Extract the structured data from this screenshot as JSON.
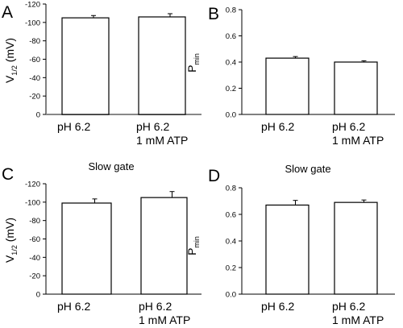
{
  "chart_data": [
    {
      "panel": "A",
      "type": "bar",
      "title": "",
      "ylabel": "V",
      "ylabel_sub": "1/2",
      "ylabel_unit": "(mV)",
      "ylim": [
        0,
        -120
      ],
      "axis_inverted": true,
      "yticks": [
        -120,
        -100,
        -80,
        -60,
        -40,
        -20,
        0
      ],
      "ytick_labels": [
        "-120",
        "-100",
        "-80",
        "-60",
        "-40",
        "-20",
        "0"
      ],
      "categories": [
        [
          "pH 6.2"
        ],
        [
          "pH 6.2",
          "1 mM ATP"
        ]
      ],
      "values": [
        -105,
        -106
      ],
      "errors": [
        2.5,
        3.5
      ],
      "grid": false
    },
    {
      "panel": "B",
      "type": "bar",
      "title": "",
      "ylabel": "P",
      "ylabel_sub": "min",
      "ylabel_unit": "",
      "ylim": [
        0,
        0.8
      ],
      "axis_inverted": false,
      "yticks": [
        0,
        0.2,
        0.4,
        0.6,
        0.8
      ],
      "ytick_labels": [
        "0.0",
        "0.2",
        "0.4",
        "0.6",
        "0.8"
      ],
      "categories": [
        [
          "pH 6.2"
        ],
        [
          "pH 6.2",
          "1 mM ATP"
        ]
      ],
      "values": [
        0.43,
        0.4
      ],
      "errors": [
        0.012,
        0.01
      ],
      "grid": false
    },
    {
      "panel": "C",
      "type": "bar",
      "title": "Slow gate",
      "ylabel": "V",
      "ylabel_sub": "1/2",
      "ylabel_unit": "(mV)",
      "ylim": [
        0,
        -120
      ],
      "axis_inverted": true,
      "yticks": [
        -120,
        -100,
        -80,
        -60,
        -40,
        -20,
        0
      ],
      "ytick_labels": [
        "-120",
        "-100",
        "-80",
        "-60",
        "-40",
        "-20",
        "0"
      ],
      "categories": [
        [
          "pH 6.2"
        ],
        [
          "pH 6.2",
          "1 mM ATP"
        ]
      ],
      "values": [
        -99,
        -105
      ],
      "errors": [
        4.5,
        6.5
      ],
      "grid": false
    },
    {
      "panel": "D",
      "type": "bar",
      "title": "Slow gate",
      "ylabel": "P",
      "ylabel_sub": "min",
      "ylabel_unit": "",
      "ylim": [
        0,
        0.8
      ],
      "axis_inverted": false,
      "yticks": [
        0,
        0.2,
        0.4,
        0.6,
        0.8
      ],
      "ytick_labels": [
        "0.0",
        "0.2",
        "0.4",
        "0.6",
        "0.8"
      ],
      "categories": [
        [
          "pH 6.2"
        ],
        [
          "pH 6.2",
          "1 mM ATP"
        ]
      ],
      "values": [
        0.67,
        0.69
      ],
      "errors": [
        0.035,
        0.018
      ],
      "grid": false
    }
  ]
}
